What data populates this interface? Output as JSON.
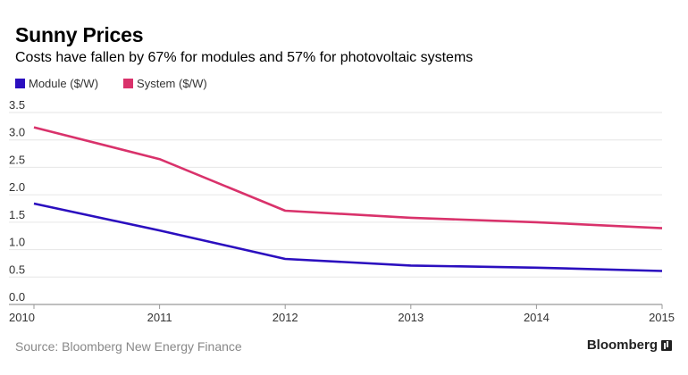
{
  "header": {
    "title": "Sunny Prices",
    "subtitle": "Costs have fallen by 67% for modules and 57% for photovoltaic systems"
  },
  "footer": {
    "source": "Source: Bloomberg New Energy Finance",
    "brand": "Bloomberg"
  },
  "chart_data": {
    "type": "line",
    "x": [
      "2010",
      "2011",
      "2012",
      "2013",
      "2014",
      "2015"
    ],
    "series": [
      {
        "name": "Module ($/W)",
        "color": "#2b0fbf",
        "values": [
          1.84,
          1.35,
          0.83,
          0.71,
          0.67,
          0.61
        ]
      },
      {
        "name": "System ($/W)",
        "color": "#d9326b",
        "values": [
          3.23,
          2.65,
          1.71,
          1.58,
          1.5,
          1.39
        ]
      }
    ],
    "ylim": [
      0,
      3.5
    ],
    "yticks": [
      "0.0",
      "0.5",
      "1.0",
      "1.5",
      "2.0",
      "2.5",
      "3.0",
      "3.5"
    ],
    "grid": true,
    "legend_position": "top-left"
  }
}
